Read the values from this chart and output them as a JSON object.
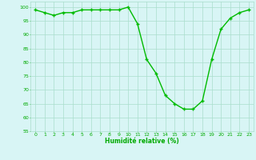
{
  "x": [
    0,
    1,
    2,
    3,
    4,
    5,
    6,
    7,
    8,
    9,
    10,
    11,
    12,
    13,
    14,
    15,
    16,
    17,
    18,
    19,
    20,
    21,
    22,
    23
  ],
  "y": [
    99,
    98,
    97,
    98,
    98,
    99,
    99,
    99,
    99,
    99,
    100,
    94,
    81,
    76,
    68,
    65,
    63,
    63,
    66,
    81,
    92,
    96,
    98,
    99
  ],
  "line_color": "#00bb00",
  "marker_color": "#00bb00",
  "bg_color": "#d8f5f5",
  "grid_color": "#aaddcc",
  "xlabel": "Humidité relative (%)",
  "xlabel_color": "#00aa00",
  "tick_color": "#00aa00",
  "ylim": [
    55,
    102
  ],
  "xlim": [
    -0.5,
    23.5
  ],
  "yticks": [
    55,
    60,
    65,
    70,
    75,
    80,
    85,
    90,
    95,
    100
  ],
  "xticks": [
    0,
    1,
    2,
    3,
    4,
    5,
    6,
    7,
    8,
    9,
    10,
    11,
    12,
    13,
    14,
    15,
    16,
    17,
    18,
    19,
    20,
    21,
    22,
    23
  ]
}
